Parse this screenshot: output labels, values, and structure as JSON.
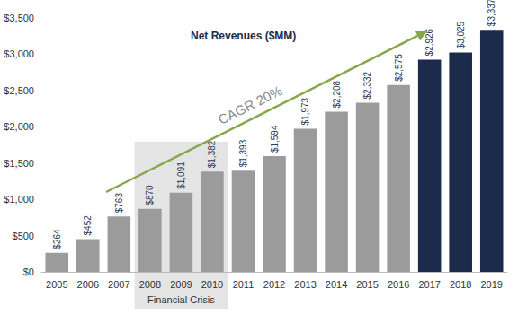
{
  "chart_data": {
    "type": "bar",
    "title": "Net Revenues ($MM)",
    "categories": [
      "2005",
      "2006",
      "2007",
      "2008",
      "2009",
      "2010",
      "2011",
      "2012",
      "2013",
      "2014",
      "2015",
      "2016",
      "2017",
      "2018",
      "2019"
    ],
    "values": [
      264,
      452,
      763,
      870,
      1091,
      1382,
      1393,
      1594,
      1973,
      2208,
      2332,
      2575,
      2926,
      3025,
      3337
    ],
    "value_labels": [
      "$264",
      "$452",
      "$763",
      "$870",
      "$1,091",
      "$1,382",
      "$1,393",
      "$1,594",
      "$1,973",
      "$2,208",
      "$2,332",
      "$2,575",
      "$2,926",
      "$3,025",
      "$3,337"
    ],
    "colors": [
      "#9b9b9b",
      "#9b9b9b",
      "#9b9b9b",
      "#9b9b9b",
      "#9b9b9b",
      "#9b9b9b",
      "#9b9b9b",
      "#9b9b9b",
      "#9b9b9b",
      "#9b9b9b",
      "#9b9b9b",
      "#9b9b9b",
      "#1c2b4b",
      "#1c2b4b",
      "#1c2b4b"
    ],
    "ylim": [
      0,
      3500
    ],
    "yticks": [
      {
        "value": 0,
        "label": "$0"
      },
      {
        "value": 500,
        "label": "$500"
      },
      {
        "value": 1000,
        "label": "$1,000"
      },
      {
        "value": 1500,
        "label": "$1,500"
      },
      {
        "value": 2000,
        "label": "$2,000"
      },
      {
        "value": 2500,
        "label": "$2,500"
      },
      {
        "value": 3000,
        "label": "$3,000"
      },
      {
        "value": 3500,
        "label": "$3,500"
      }
    ],
    "grid": false,
    "data_labels": true,
    "annotations": [
      {
        "text": "CAGR 20%"
      },
      {
        "text": "Financial Crisis",
        "from": "2008",
        "to": "2010"
      }
    ]
  }
}
